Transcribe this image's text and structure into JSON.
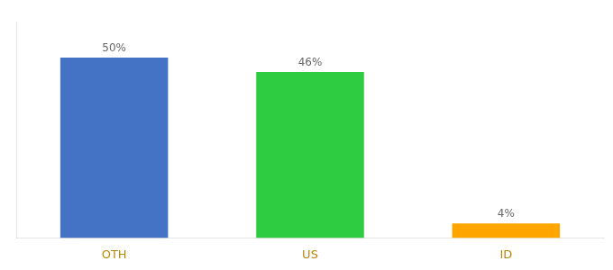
{
  "chart_data": {
    "type": "bar",
    "categories": [
      "OTH",
      "US",
      "ID"
    ],
    "values": [
      50,
      46,
      4
    ],
    "value_labels": [
      "50%",
      "46%",
      "4%"
    ],
    "colors": [
      "#4472C4",
      "#2ECC40",
      "#FFA500"
    ],
    "ylim": [
      0,
      60
    ],
    "yticks": [],
    "grid": false,
    "data_labels": true,
    "tick_labels": "x"
  }
}
